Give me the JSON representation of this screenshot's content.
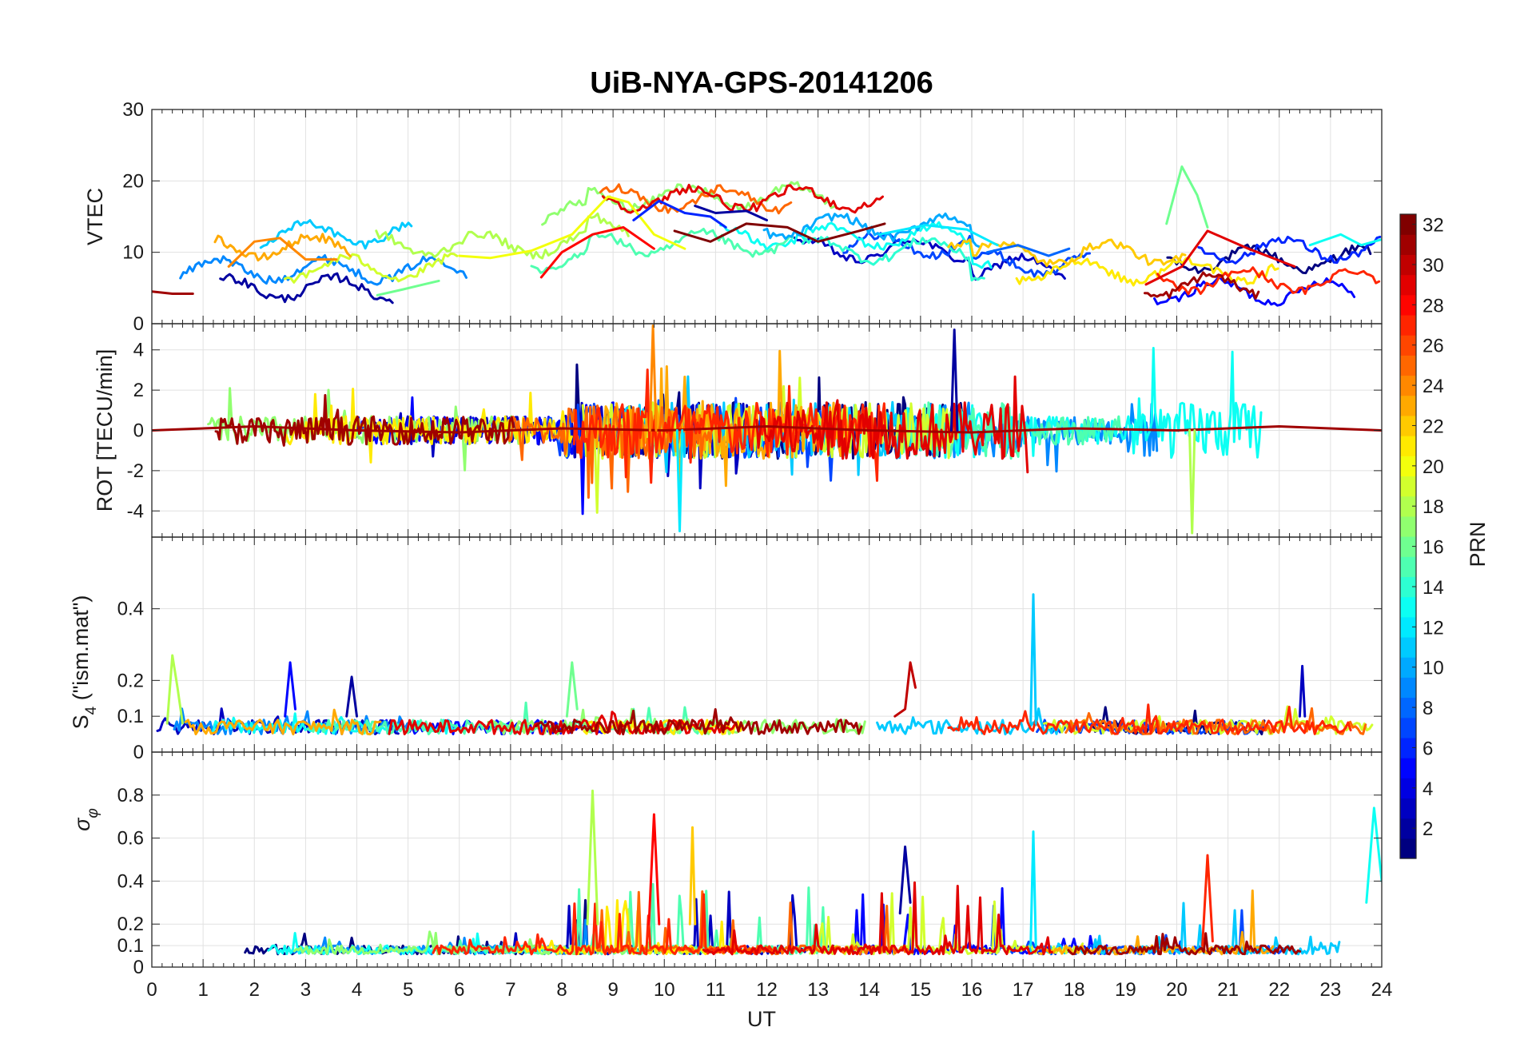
{
  "chart_data": {
    "type": "line",
    "title": "UiB-NYA-GPS-20141206",
    "xlabel": "UT",
    "xlim": [
      0,
      24
    ],
    "xticks": [
      "0",
      "1",
      "2",
      "3",
      "4",
      "5",
      "6",
      "7",
      "8",
      "9",
      "10",
      "11",
      "12",
      "13",
      "14",
      "15",
      "16",
      "17",
      "18",
      "19",
      "20",
      "21",
      "22",
      "23",
      "24"
    ],
    "grid": true,
    "colormap": "jet",
    "colorbar": {
      "label": "PRN",
      "range": [
        1,
        32
      ],
      "ticks": [
        "2",
        "4",
        "6",
        "8",
        "10",
        "12",
        "14",
        "16",
        "18",
        "20",
        "22",
        "24",
        "26",
        "28",
        "30",
        "32"
      ],
      "placement": "right"
    },
    "panels": [
      {
        "id": "vtec",
        "ylabel": "VTEC",
        "ylim": [
          0,
          30
        ],
        "yticks": [
          "0",
          "10",
          "20",
          "30"
        ],
        "series": [
          {
            "prn": 28,
            "x": [
              7.6,
              8.0,
              8.6,
              9.2,
              9.8
            ],
            "y": [
              6.5,
              10,
              12.5,
              13.5,
              10.5
            ]
          },
          {
            "prn": 20,
            "x": [
              6.0,
              6.6,
              7.4,
              8.2,
              8.9,
              9.3,
              9.8,
              10.4
            ],
            "y": [
              9.5,
              9.2,
              10.2,
              12.5,
              17.8,
              17.0,
              12.5,
              10.5
            ]
          },
          {
            "prn": 6,
            "x": [
              9.4,
              9.9,
              10.4,
              10.9,
              11.2
            ],
            "y": [
              14.5,
              17.2,
              15.5,
              15.0,
              13.5
            ]
          },
          {
            "prn": 2,
            "x": [
              10.6,
              11.0,
              11.6,
              12.0
            ],
            "y": [
              16.5,
              15.5,
              15.8,
              14.5
            ]
          },
          {
            "prn": 32,
            "x": [
              10.2,
              10.9,
              11.6,
              12.4,
              13.0,
              13.8,
              14.3
            ],
            "y": [
              13.0,
              11.5,
              14.0,
              13.5,
              11.5,
              13.0,
              14.0
            ]
          },
          {
            "prn": 12,
            "x": [
              14.2,
              15.1,
              15.9,
              16.5
            ],
            "y": [
              12.5,
              13.8,
              13.2,
              11.0
            ]
          },
          {
            "prn": 8,
            "x": [
              16.3,
              16.9,
              17.5,
              17.9
            ],
            "y": [
              10.0,
              11.0,
              9.5,
              10.5
            ]
          },
          {
            "prn": 16,
            "x": [
              19.8,
              20.1,
              20.4,
              20.6
            ],
            "y": [
              14.0,
              22.0,
              18.0,
              13.5
            ]
          },
          {
            "prn": 29,
            "x": [
              19.4,
              20.1,
              20.6,
              21.4,
              22.3
            ],
            "y": [
              5.5,
              8.0,
              13.0,
              10.5,
              8.0
            ]
          },
          {
            "prn": 24,
            "x": [
              1.5,
              2.0,
              2.5,
              3.0,
              3.6
            ],
            "y": [
              8.0,
              11.5,
              12.0,
              9.0,
              9.0
            ]
          },
          {
            "prn": 31,
            "x": [
              0.0,
              0.4,
              0.8
            ],
            "y": [
              4.5,
              4.2,
              4.2
            ]
          },
          {
            "prn": 16,
            "x": [
              4.4,
              4.9,
              5.3,
              5.6
            ],
            "y": [
              4.0,
              4.8,
              5.5,
              6.0
            ]
          },
          {
            "prn": 13,
            "x": [
              22.6,
              23.2,
              23.6,
              24.0
            ],
            "y": [
              11.0,
              12.5,
              11.0,
              11.8
            ]
          }
        ]
      },
      {
        "id": "rot",
        "ylabel": "ROT [TECU/min]",
        "ylim": [
          -5.3,
          5.3
        ],
        "yticks": [
          "-4",
          "-2",
          "0",
          "2",
          "4"
        ],
        "series": [
          {
            "prn": 31,
            "x": [
              0.0,
              2.0,
              4.0,
              6.0,
              8.0,
              10.0,
              12.0,
              14.0,
              16.0,
              18.0,
              20.0,
              22.0,
              24.0
            ],
            "y": [
              0.0,
              0.2,
              0.0,
              -0.1,
              0.1,
              0.0,
              0.2,
              0.0,
              -0.1,
              0.1,
              0.0,
              0.2,
              0.0
            ]
          },
          {
            "prn": 24,
            "x": [
              9.72,
              9.78,
              9.84
            ],
            "y": [
              0.0,
              5.2,
              0.0
            ]
          },
          {
            "prn": 2,
            "x": [
              15.6,
              15.66,
              15.72
            ],
            "y": [
              0.0,
              5.0,
              0.0
            ]
          },
          {
            "prn": 18,
            "x": [
              20.25,
              20.3,
              20.35
            ],
            "y": [
              0.0,
              -5.1,
              0.0
            ]
          },
          {
            "prn": 12,
            "x": [
              10.25,
              10.3,
              10.35
            ],
            "y": [
              0.0,
              -5.0,
              0.0
            ]
          }
        ]
      },
      {
        "id": "s4",
        "ylabel": "S4 (\"ism.mat\")",
        "ylim": [
          0,
          0.6
        ],
        "yticks": [
          "0",
          "0.1",
          "0.2",
          "0.4"
        ],
        "series": [
          {
            "prn": 18,
            "x": [
              0.3,
              0.4,
              0.5,
              0.6
            ],
            "y": [
              0.08,
              0.27,
              0.18,
              0.08
            ]
          },
          {
            "prn": 5,
            "x": [
              2.6,
              2.7,
              2.8
            ],
            "y": [
              0.1,
              0.25,
              0.12
            ]
          },
          {
            "prn": 2,
            "x": [
              3.8,
              3.9,
              4.0
            ],
            "y": [
              0.1,
              0.21,
              0.1
            ]
          },
          {
            "prn": 16,
            "x": [
              8.1,
              8.2,
              8.3
            ],
            "y": [
              0.1,
              0.25,
              0.12
            ]
          },
          {
            "prn": 11,
            "x": [
              17.15,
              17.2,
              17.25
            ],
            "y": [
              0.08,
              0.44,
              0.08
            ]
          },
          {
            "prn": 30,
            "x": [
              14.5,
              14.7,
              14.8,
              14.9
            ],
            "y": [
              0.1,
              0.12,
              0.25,
              0.18
            ]
          },
          {
            "prn": 3,
            "x": [
              22.4,
              22.45,
              22.5
            ],
            "y": [
              0.1,
              0.24,
              0.1
            ]
          }
        ]
      },
      {
        "id": "sigma",
        "ylabel": "σφ",
        "ylim": [
          0,
          1
        ],
        "yticks": [
          "0",
          "0.1",
          "0.2",
          "0.4",
          "0.6",
          "0.8"
        ],
        "series": [
          {
            "prn": 18,
            "x": [
              8.5,
              8.6,
              8.7
            ],
            "y": [
              0.2,
              0.82,
              0.2
            ]
          },
          {
            "prn": 28,
            "x": [
              9.7,
              9.8,
              9.9
            ],
            "y": [
              0.2,
              0.71,
              0.2
            ]
          },
          {
            "prn": 22,
            "x": [
              10.5,
              10.55,
              10.6
            ],
            "y": [
              0.2,
              0.65,
              0.2
            ]
          },
          {
            "prn": 12,
            "x": [
              17.15,
              17.2,
              17.25
            ],
            "y": [
              0.1,
              0.63,
              0.1
            ]
          },
          {
            "prn": 2,
            "x": [
              14.6,
              14.7,
              14.8
            ],
            "y": [
              0.25,
              0.56,
              0.3
            ]
          },
          {
            "prn": 27,
            "x": [
              20.5,
              20.6,
              20.7
            ],
            "y": [
              0.1,
              0.52,
              0.12
            ]
          },
          {
            "prn": 13,
            "x": [
              23.7,
              23.85,
              24.0
            ],
            "y": [
              0.3,
              0.74,
              0.4
            ]
          }
        ]
      }
    ]
  }
}
